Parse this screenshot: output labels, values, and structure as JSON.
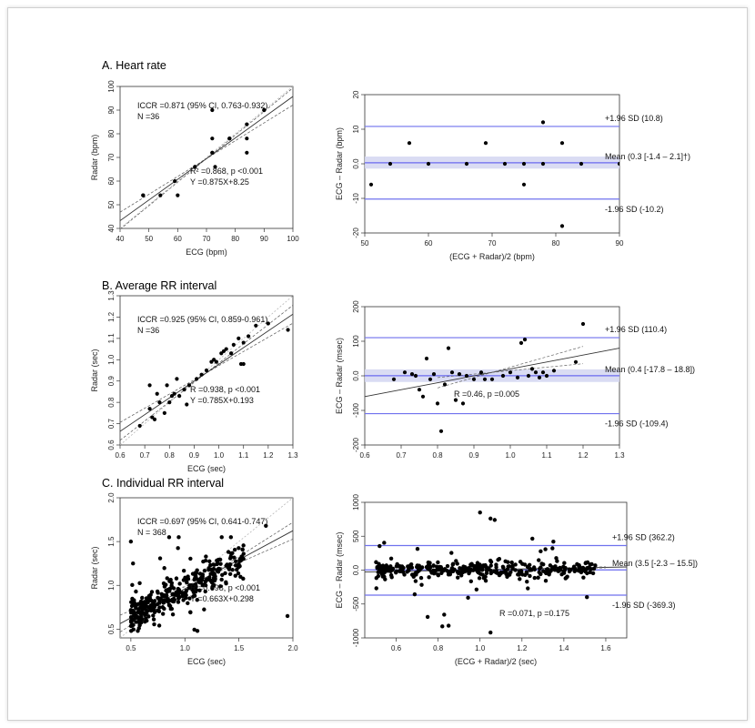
{
  "chart_data": [
    {
      "panel_id": "A-left",
      "type": "scatter",
      "title": "A. Heart rate",
      "xlabel": "ECG (bpm)",
      "ylabel": "Radar (bpm)",
      "xlim": [
        40,
        100
      ],
      "ylim": [
        40,
        100
      ],
      "xticks": [
        40,
        50,
        60,
        70,
        80,
        90,
        100
      ],
      "yticks": [
        40,
        50,
        60,
        70,
        80,
        90,
        100
      ],
      "annotations": [
        "ICCR =0.871 (95% CI, 0.763-0.932)",
        "N =36",
        "R² =0.868, p <0.001",
        "Y =0.875X+8.25"
      ],
      "regression": {
        "slope": 0.875,
        "intercept": 8.25
      },
      "identity_line": true,
      "points": [
        [
          48,
          54
        ],
        [
          48,
          54
        ],
        [
          54,
          54
        ],
        [
          59,
          60
        ],
        [
          60,
          54
        ],
        [
          66,
          66
        ],
        [
          66,
          66
        ],
        [
          72,
          90
        ],
        [
          72,
          72
        ],
        [
          72,
          72
        ],
        [
          72,
          78
        ],
        [
          73,
          66
        ],
        [
          78,
          78
        ],
        [
          78,
          78
        ],
        [
          78,
          78
        ],
        [
          84,
          84
        ],
        [
          84,
          72
        ],
        [
          84,
          78
        ],
        [
          90,
          90
        ],
        [
          90,
          90
        ]
      ]
    },
    {
      "panel_id": "A-right",
      "type": "scatter",
      "title": "",
      "xlabel": "(ECG + Radar)/2 (bpm)",
      "ylabel": "ECG – Radar (bpm)",
      "xlim": [
        50,
        90
      ],
      "ylim": [
        -20,
        20
      ],
      "xticks": [
        50,
        60,
        70,
        80,
        90
      ],
      "yticks": [
        -20,
        -10,
        0,
        10,
        20
      ],
      "ref_lines": [
        {
          "value": 10.8,
          "label": "+1.96 SD (10.8)"
        },
        {
          "value": 0.3,
          "label": "Mean (0.3 [-1.4 – 2.1]†)"
        },
        {
          "value": -10.2,
          "label": "-1.96 SD (-10.2)"
        }
      ],
      "ci_band": [
        -1.4,
        2.1
      ],
      "points": [
        [
          51,
          -6
        ],
        [
          54,
          0
        ],
        [
          57,
          6
        ],
        [
          60,
          0
        ],
        [
          66,
          0
        ],
        [
          69,
          6
        ],
        [
          72,
          0
        ],
        [
          75,
          0
        ],
        [
          75,
          -6
        ],
        [
          78,
          12
        ],
        [
          78,
          0
        ],
        [
          81,
          6
        ],
        [
          81,
          -18
        ],
        [
          84,
          0
        ],
        [
          90,
          0
        ]
      ]
    },
    {
      "panel_id": "B-left",
      "type": "scatter",
      "title": "B. Average RR interval",
      "xlabel": "ECG (sec)",
      "ylabel": "Radar (sec)",
      "xlim": [
        0.6,
        1.3
      ],
      "ylim": [
        0.6,
        1.3
      ],
      "xticks": [
        0.6,
        0.7,
        0.8,
        0.9,
        1.0,
        1.1,
        1.2,
        1.3
      ],
      "yticks": [
        0.6,
        0.7,
        0.8,
        0.9,
        1.0,
        1.1,
        1.2,
        1.3
      ],
      "annotations": [
        "ICCR =0.925 (95% CI, 0.859-0.961)",
        "N =36",
        "R =0.938, p <0.001",
        "Y =0.785X+0.193"
      ],
      "regression": {
        "slope": 0.785,
        "intercept": 0.193
      },
      "identity_line": true,
      "points": [
        [
          0.68,
          0.69
        ],
        [
          0.72,
          0.77
        ],
        [
          0.72,
          0.88
        ],
        [
          0.73,
          0.73
        ],
        [
          0.74,
          0.72
        ],
        [
          0.75,
          0.84
        ],
        [
          0.76,
          0.8
        ],
        [
          0.78,
          0.75
        ],
        [
          0.79,
          0.88
        ],
        [
          0.8,
          0.8
        ],
        [
          0.81,
          0.83
        ],
        [
          0.82,
          0.84
        ],
        [
          0.83,
          0.91
        ],
        [
          0.84,
          0.83
        ],
        [
          0.86,
          0.86
        ],
        [
          0.87,
          0.79
        ],
        [
          0.88,
          0.88
        ],
        [
          0.91,
          0.91
        ],
        [
          0.93,
          0.93
        ],
        [
          0.95,
          0.95
        ],
        [
          0.97,
          0.99
        ],
        [
          0.99,
          0.99
        ],
        [
          1.01,
          1.03
        ],
        [
          1.02,
          1.04
        ],
        [
          1.03,
          1.05
        ],
        [
          1.05,
          1.03
        ],
        [
          1.06,
          1.07
        ],
        [
          1.08,
          1.1
        ],
        [
          1.09,
          0.98
        ],
        [
          1.1,
          0.98
        ],
        [
          1.1,
          1.08
        ],
        [
          1.12,
          1.11
        ],
        [
          1.15,
          1.16
        ],
        [
          1.2,
          1.17
        ],
        [
          1.28,
          1.14
        ],
        [
          0.98,
          1.0
        ]
      ]
    },
    {
      "panel_id": "B-right",
      "type": "scatter",
      "title": "",
      "xlabel": "",
      "ylabel": "ECG – Radar (msec)",
      "xlim": [
        0.6,
        1.3
      ],
      "ylim": [
        -200,
        200
      ],
      "xticks": [
        0.6,
        0.7,
        0.8,
        0.9,
        1.0,
        1.1,
        1.2,
        1.3
      ],
      "yticks": [
        -200,
        -100,
        0,
        100,
        200
      ],
      "ref_lines": [
        {
          "value": 110.4,
          "label": "+1.96 SD (110.4)"
        },
        {
          "value": 0.4,
          "label": "Mean (0.4 [-17.8 – 18.8])"
        },
        {
          "value": -109.4,
          "label": "-1.96 SD (-109.4)"
        }
      ],
      "ci_band": [
        -17.8,
        18.8
      ],
      "annotations": [
        "R =0.46, p =0.005"
      ],
      "trend": {
        "slope": 200,
        "intercept": -180
      },
      "points": [
        [
          0.68,
          -10
        ],
        [
          0.71,
          10
        ],
        [
          0.73,
          5
        ],
        [
          0.74,
          0
        ],
        [
          0.75,
          -40
        ],
        [
          0.76,
          -60
        ],
        [
          0.77,
          50
        ],
        [
          0.78,
          -10
        ],
        [
          0.79,
          5
        ],
        [
          0.8,
          -80
        ],
        [
          0.81,
          -160
        ],
        [
          0.82,
          -25
        ],
        [
          0.83,
          80
        ],
        [
          0.84,
          10
        ],
        [
          0.85,
          -70
        ],
        [
          0.86,
          5
        ],
        [
          0.87,
          -80
        ],
        [
          0.88,
          0
        ],
        [
          0.9,
          -10
        ],
        [
          0.92,
          10
        ],
        [
          0.93,
          -10
        ],
        [
          0.95,
          -10
        ],
        [
          0.98,
          0
        ],
        [
          1.0,
          10
        ],
        [
          1.02,
          -5
        ],
        [
          1.03,
          95
        ],
        [
          1.04,
          105
        ],
        [
          1.05,
          0
        ],
        [
          1.06,
          20
        ],
        [
          1.07,
          10
        ],
        [
          1.08,
          -5
        ],
        [
          1.09,
          10
        ],
        [
          1.1,
          0
        ],
        [
          1.12,
          15
        ],
        [
          1.18,
          40
        ],
        [
          1.2,
          150
        ]
      ]
    },
    {
      "panel_id": "C-left",
      "type": "scatter",
      "title": "C. Individual RR interval",
      "xlabel": "ECG (sec)",
      "ylabel": "Radar (sec)",
      "xlim": [
        0.4,
        2.0
      ],
      "ylim": [
        0.4,
        2.0
      ],
      "xticks": [
        0.5,
        1.0,
        1.5,
        2.0
      ],
      "yticks": [
        0.5,
        1.0,
        1.5,
        2.0
      ],
      "annotations": [
        "ICCR =0.697 (95% CI, 0.641-0.747)",
        "N = 368",
        "R =0.698, p <0.001",
        "Y =0.663X+0.298"
      ],
      "regression": {
        "slope": 0.663,
        "intercept": 0.298
      },
      "identity_line": true,
      "n_points": 368
    },
    {
      "panel_id": "C-right",
      "type": "scatter",
      "title": "",
      "xlabel": "(ECG + Radar)/2 (sec)",
      "ylabel": "ECG – Radar (msec)",
      "xlim": [
        0.45,
        1.7
      ],
      "ylim": [
        -1000,
        1000
      ],
      "xticks": [
        0.6,
        0.8,
        1.0,
        1.2,
        1.4,
        1.6
      ],
      "yticks": [
        -1000,
        -500,
        0,
        500,
        1000
      ],
      "ref_lines": [
        {
          "value": 362.2,
          "label": "+1.96 SD (362.2)"
        },
        {
          "value": 3.5,
          "label": "Mean (3.5 [-2.3 – 15.5])"
        },
        {
          "value": -369.3,
          "label": "-1.96 SD (-369.3)"
        }
      ],
      "annotations": [
        "R =0.071, p =0.175"
      ],
      "trend": {
        "slope": 60,
        "intercept": -55
      },
      "n_points": 368
    }
  ]
}
